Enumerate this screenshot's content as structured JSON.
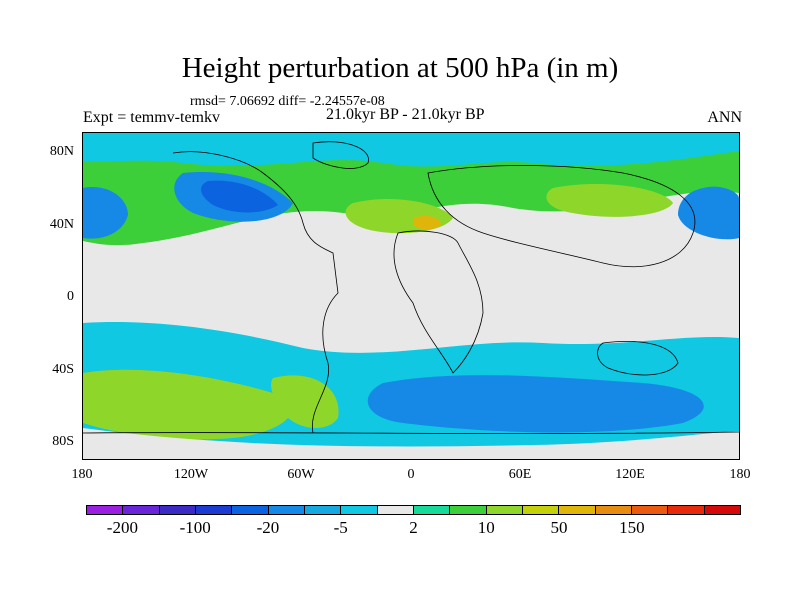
{
  "title": "Height perturbation at 500 hPa (in m)",
  "stats": "rmsd= 7.06692  diff= -2.24557e-08",
  "experiment": "Expt = temmv-temkv",
  "period": "21.0kyr BP - 21.0kyr BP",
  "season": "ANN",
  "map": {
    "lat_labels": [
      "80N",
      "40N",
      "0",
      "40S",
      "80S"
    ],
    "lon_labels": [
      "180",
      "120W",
      "60W",
      "0",
      "60E",
      "120E",
      "180"
    ]
  },
  "colorbar": {
    "colors": [
      "#9b1fe0",
      "#6a25d8",
      "#3b2ac4",
      "#1c3cd1",
      "#0c63df",
      "#1689e7",
      "#15a9e0",
      "#10c8e2",
      "#e8e8e8",
      "#17d99a",
      "#3ccf3a",
      "#8ed62a",
      "#c4d10a",
      "#e0b50a",
      "#e68c10",
      "#ea5a10",
      "#e82a0c",
      "#d40a0a"
    ],
    "labels": [
      "-200",
      "-100",
      "-20",
      "-5",
      "2",
      "10",
      "50",
      "150"
    ]
  }
}
